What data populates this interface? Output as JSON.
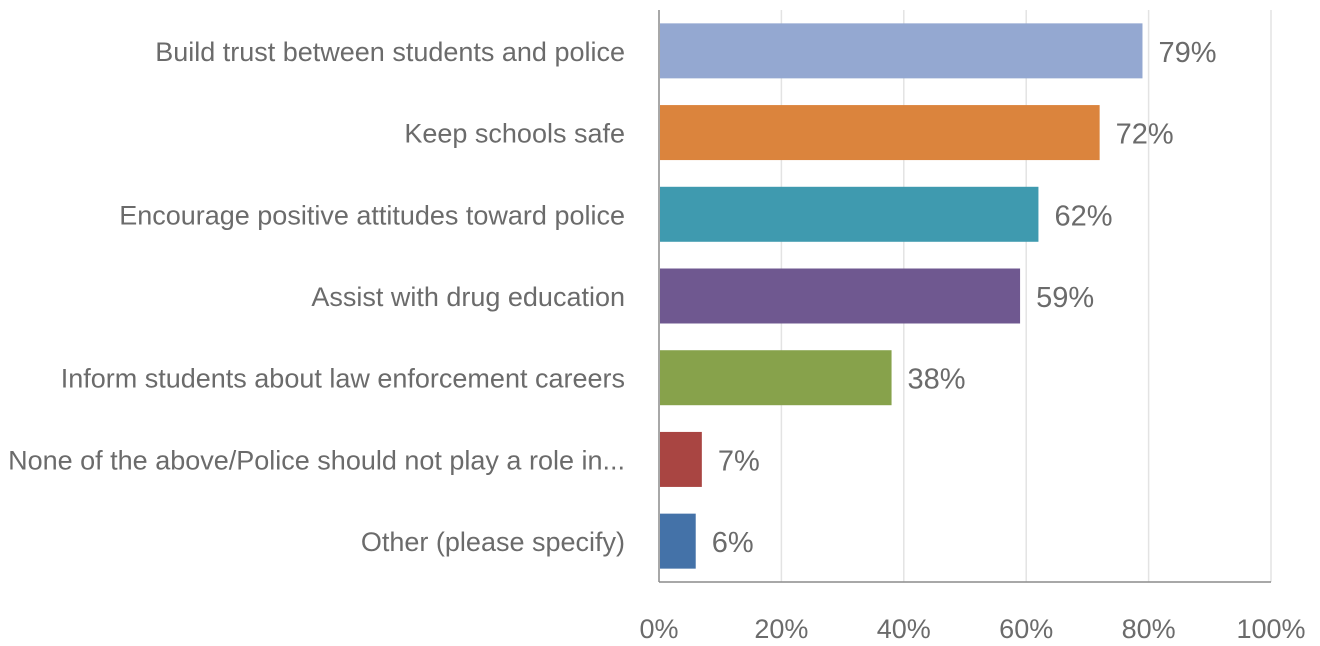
{
  "chart_data": {
    "type": "bar",
    "orientation": "horizontal",
    "categories": [
      "Build trust between students and police",
      "Keep schools safe",
      "Encourage positive attitudes toward police",
      "Assist with drug education",
      "Inform students about law enforcement careers",
      "None of the above/Police should not play a role in...",
      "Other (please specify)"
    ],
    "values": [
      79,
      72,
      62,
      59,
      38,
      7,
      6
    ],
    "data_labels": [
      "79%",
      "72%",
      "62%",
      "59%",
      "38%",
      "7%",
      "6%"
    ],
    "colors": [
      "#94a8d1",
      "#db843d",
      "#3f9aaf",
      "#6f5890",
      "#87a24b",
      "#a94542",
      "#4472a8"
    ],
    "title": "",
    "xlabel": "",
    "ylabel": "",
    "xlim": [
      0,
      100
    ],
    "ticks": [
      "0%",
      "20%",
      "40%",
      "60%",
      "80%",
      "100%"
    ],
    "grid": true,
    "legend": "none"
  }
}
